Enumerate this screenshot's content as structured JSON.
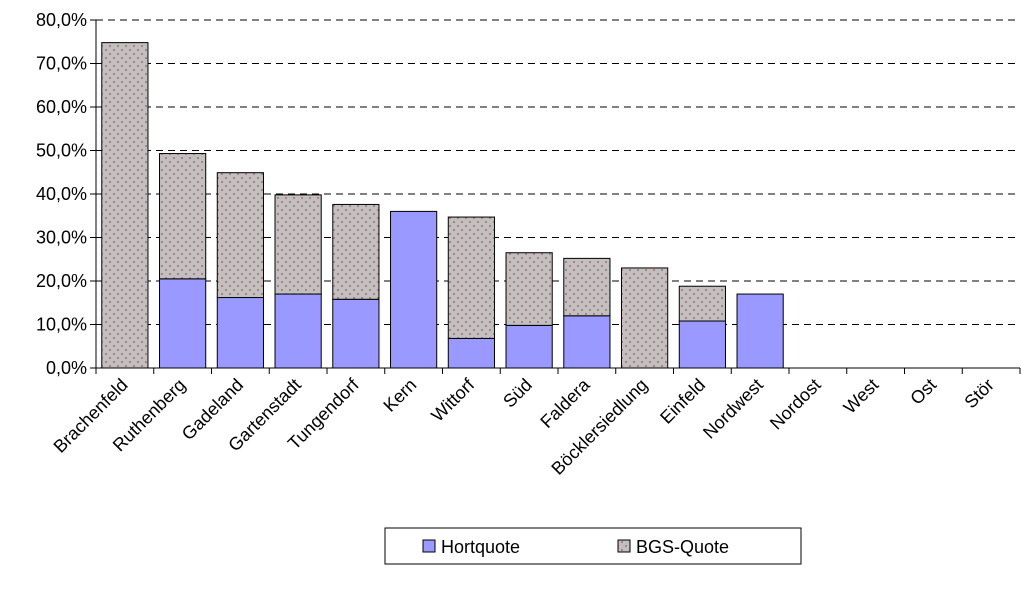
{
  "chart_data": {
    "type": "bar",
    "stacked": true,
    "categories": [
      "Brachenfeld",
      "Ruthenberg",
      "Gadeland",
      "Gartenstadt",
      "Tungendorf",
      "Kern",
      "Wittorf",
      "Süd",
      "Faldera",
      "Böcklersiedlung",
      "Einfeld",
      "Nordwest",
      "Nordost",
      "West",
      "Ost",
      "Stör"
    ],
    "series": [
      {
        "name": "Hortquote",
        "color": "#9999ff",
        "pattern": "solid",
        "values": [
          0,
          20.5,
          16.2,
          17.0,
          15.8,
          36.0,
          6.8,
          9.8,
          12.0,
          0,
          10.8,
          17.0,
          0,
          0,
          0,
          0
        ]
      },
      {
        "name": "BGS-Quote",
        "color": "#c0c0c0",
        "pattern": "dotted",
        "values": [
          74.8,
          28.8,
          28.7,
          22.8,
          21.8,
          0,
          27.9,
          16.7,
          13.2,
          23.0,
          8.0,
          0,
          0,
          0,
          0,
          0
        ]
      }
    ],
    "ylim": [
      0,
      80
    ],
    "yticks": [
      "0,0%",
      "10,0%",
      "20,0%",
      "30,0%",
      "40,0%",
      "50,0%",
      "60,0%",
      "70,0%",
      "80,0%"
    ],
    "ytick_values": [
      0,
      10,
      20,
      30,
      40,
      50,
      60,
      70,
      80
    ],
    "grid": "horizontal-dashed",
    "legend_position": "bottom"
  }
}
